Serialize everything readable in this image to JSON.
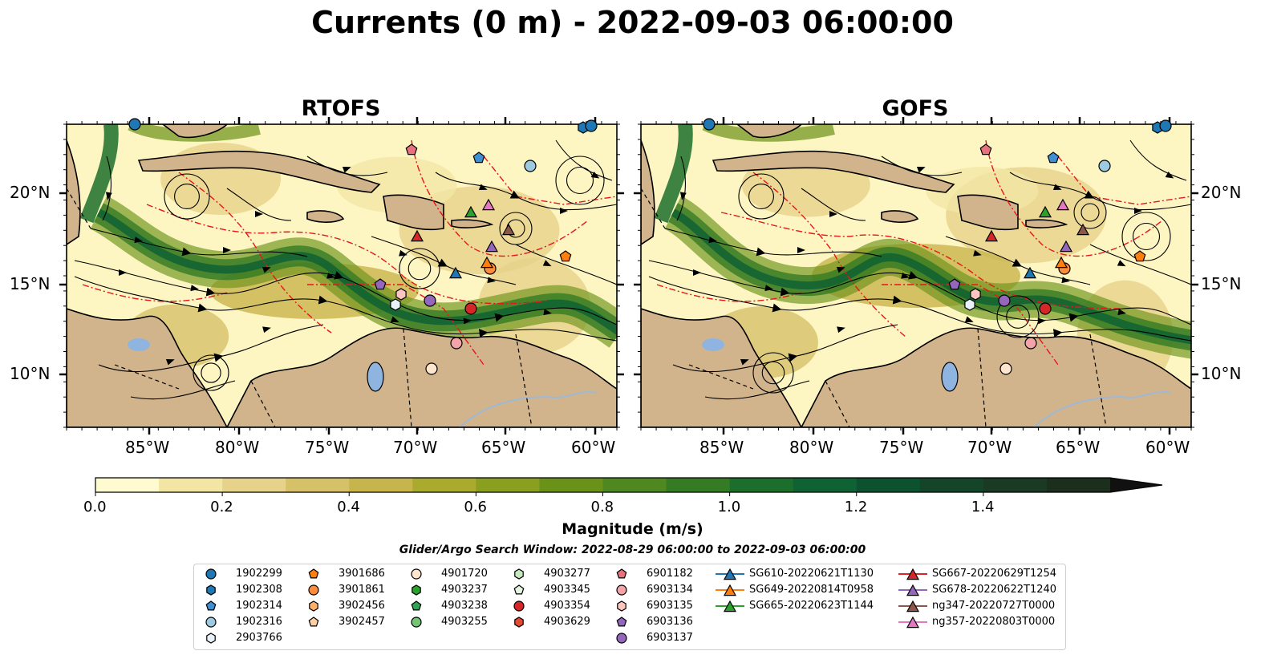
{
  "title": "Currents (0 m) - 2022-09-03 06:00:00",
  "panels": [
    {
      "title": "RTOFS"
    },
    {
      "title": "GOFS"
    }
  ],
  "lat_ticks": [
    "20°N",
    "15°N",
    "10°N"
  ],
  "lon_ticks": [
    "85°W",
    "80°W",
    "75°W",
    "70°W",
    "65°W",
    "60°W"
  ],
  "colors": {
    "land": "#d2b48c",
    "water_low": "#fdf6c3",
    "water_mid": "#d9c56a",
    "water_high": "#0d5e2f",
    "eez": "#e8161b",
    "lake": "#8fb4e0"
  },
  "colorbar": {
    "title": "Magnitude (m/s)",
    "ticks": [
      "0.0",
      "0.2",
      "0.4",
      "0.6",
      "0.8",
      "1.0",
      "1.2",
      "1.4"
    ],
    "range": [
      0,
      1.6
    ],
    "extend": "max",
    "colors": [
      "#fffbd0",
      "#f3e6a5",
      "#e6d28a",
      "#d6c169",
      "#c8b44c",
      "#a9aa2e",
      "#8a9e1f",
      "#6b9218",
      "#4f8720",
      "#357b24",
      "#1c6e2c",
      "#0f6233",
      "#0c5230",
      "#14452a",
      "#1a3a23",
      "#1c2e1c"
    ]
  },
  "search_window": "Glider/Argo Search Window: 2022-08-29 06:00:00 to 2022-09-03 06:00:00",
  "legend": [
    {
      "label": "1902299",
      "marker": "circle",
      "color": "#1f77b4"
    },
    {
      "label": "1902308",
      "marker": "hexagon",
      "color": "#1f77b4"
    },
    {
      "label": "1902314",
      "marker": "pentagon",
      "color": "#3f8fd2"
    },
    {
      "label": "1902316",
      "marker": "circle",
      "color": "#9ecae1"
    },
    {
      "label": "2903766",
      "marker": "hexagon",
      "color": "#e8f2fb"
    },
    {
      "label": "3901686",
      "marker": "pentagon",
      "color": "#ff7f0e"
    },
    {
      "label": "3901861",
      "marker": "circle",
      "color": "#fd8d3c"
    },
    {
      "label": "3902456",
      "marker": "hexagon",
      "color": "#fdae6b"
    },
    {
      "label": "3902457",
      "marker": "pentagon",
      "color": "#fdd0a2"
    },
    {
      "label": "4901720",
      "marker": "circle",
      "color": "#fee6ce"
    },
    {
      "label": "4903237",
      "marker": "hexagon",
      "color": "#2ca02c"
    },
    {
      "label": "4903238",
      "marker": "pentagon",
      "color": "#31a354"
    },
    {
      "label": "4903255",
      "marker": "circle",
      "color": "#74c476"
    },
    {
      "label": "4903277",
      "marker": "hexagon",
      "color": "#c7e9c0"
    },
    {
      "label": "4903345",
      "marker": "pentagon",
      "color": "#e5f5e0"
    },
    {
      "label": "4903354",
      "marker": "circle",
      "color": "#d62728"
    },
    {
      "label": "4903629",
      "marker": "hexagon",
      "color": "#e34a33"
    },
    {
      "label": "6901182",
      "marker": "pentagon",
      "color": "#e7717d"
    },
    {
      "label": "6903134",
      "marker": "circle",
      "color": "#f4a3a8"
    },
    {
      "label": "6903135",
      "marker": "hexagon",
      "color": "#fcc5c0"
    },
    {
      "label": "6903136",
      "marker": "pentagon",
      "color": "#9467bd"
    },
    {
      "label": "6903137",
      "marker": "circle",
      "color": "#9467bd"
    },
    {
      "label": "SG610-20220621T1130",
      "marker": "triangle-line",
      "color": "#1f77b4"
    },
    {
      "label": "SG649-20220814T0958",
      "marker": "triangle-line",
      "color": "#ff7f0e"
    },
    {
      "label": "SG665-20220623T1144",
      "marker": "triangle-line",
      "color": "#2ca02c"
    },
    {
      "label": "SG667-20220629T1254",
      "marker": "triangle-line",
      "color": "#d62728"
    },
    {
      "label": "SG678-20220622T1240",
      "marker": "triangle-line",
      "color": "#9467bd"
    },
    {
      "label": "ng347-20220727T0000",
      "marker": "triangle-line",
      "color": "#8c564b"
    },
    {
      "label": "ng357-20220803T0000",
      "marker": "triangle-line",
      "color": "#e377c2"
    }
  ]
}
